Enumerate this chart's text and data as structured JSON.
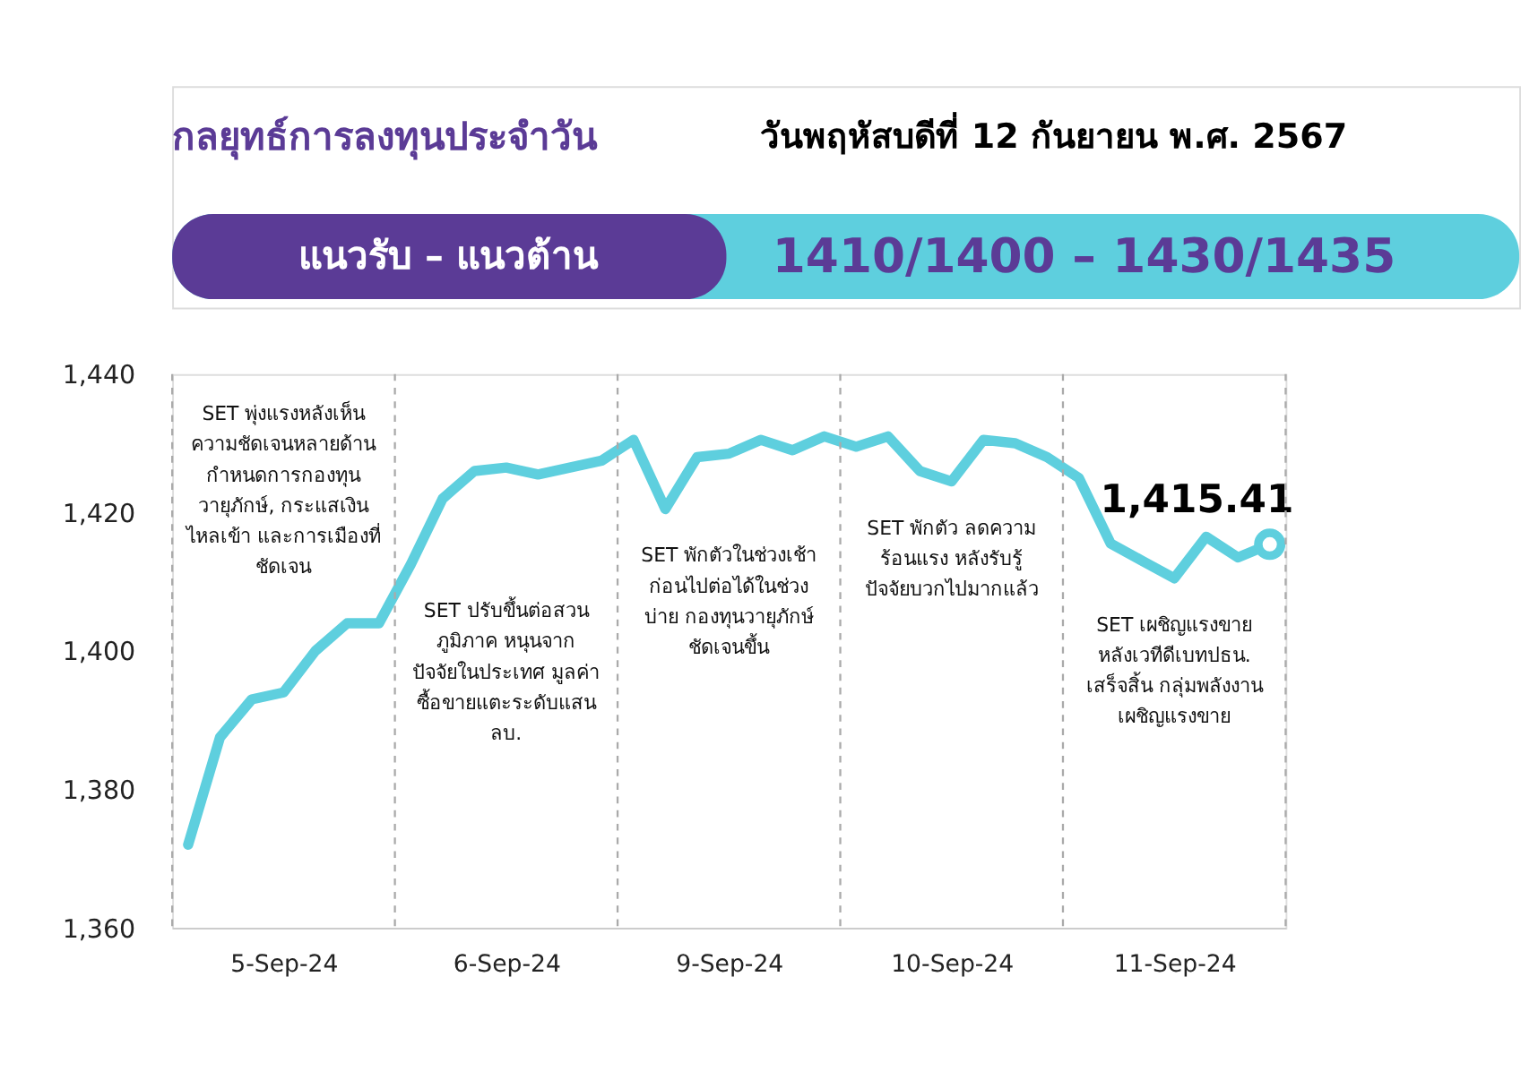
{
  "chart_data": {
    "type": "line",
    "title": "กลยุทธ์การลงทุนประจำวัน",
    "subtitle": "วันพฤหัสบดีที่ 12 กันยายน พ.ศ. 2567",
    "annotations": [
      "แนวรับ – แนวต้าน",
      "1410/1400  –  1430/1435",
      "SET พุ่งแรงหลังเห็น\nความชัดเจนหลายด้าน\nกำหนดการกองทุน\nวายุภักษ์, กระแสเงิน\nไหลเข้า และการเมืองที่\nชัดเจน",
      "SET ปรับขึ้นต่อสวน\nภูมิภาค หนุนจาก\nปัจจัยในประเทศ มูลค่า\nซื้อขายแตะระดับแสน\nลบ.",
      "SET พักตัวในช่วงเช้า\nก่อนไปต่อได้ในช่วง\nบ่าย กองทุนวายุภักษ์\nชัดเจนขึ้น",
      "SET พักตัว ลดความ\nร้อนแรง หลังรับรู้\nปัจจัยบวกไปมากแล้ว",
      "SET เผชิญแรงขาย\nหลังเวทีดีเบทปธน.\nเสร็จสิ้น กลุ่มพลังงาน\nเผชิญแรงขาย"
    ],
    "categories": [
      null,
      null,
      null,
      "5-Sep-24",
      null,
      null,
      null,
      null,
      null,
      null,
      "6-Sep-24",
      null,
      null,
      null,
      null,
      null,
      null,
      "9-Sep-24",
      null,
      null,
      null,
      null,
      null,
      null,
      "10-Sep-24",
      null,
      null,
      null,
      null,
      null,
      null,
      "11-Sep-24",
      null,
      null,
      null
    ],
    "ylim": [
      1360,
      1440
    ],
    "yticks": [
      {
        "value": 1360,
        "label": "1,360"
      },
      {
        "value": 1380,
        "label": "1,380"
      },
      {
        "value": 1400,
        "label": "1,400"
      },
      {
        "value": 1420,
        "label": "1,420"
      },
      {
        "value": 1440,
        "label": "1,440"
      }
    ],
    "series": [
      {
        "color": "#5ecfde",
        "values": [
          1372,
          1387.5,
          1393,
          1394,
          1400,
          1404,
          1404,
          1412.5,
          1422,
          1426,
          1426.5,
          1425.5,
          1426.5,
          1427.5,
          1430.5,
          1420.5,
          1428,
          1428.5,
          1430.5,
          1429,
          1431,
          1429.5,
          1431,
          1426,
          1424.5,
          1430.5,
          1430,
          1428,
          1425,
          1415.5,
          1413,
          1410.5,
          1416.5,
          1413.5,
          1415.41
        ]
      },
      {
        "type": "scatter",
        "color": "#5ecfde",
        "values": [
          null,
          null,
          null,
          null,
          null,
          null,
          null,
          null,
          null,
          null,
          null,
          null,
          null,
          null,
          null,
          null,
          null,
          null,
          null,
          null,
          null,
          null,
          null,
          null,
          null,
          null,
          null,
          null,
          null,
          null,
          null,
          null,
          null,
          null,
          1415.41
        ],
        "value_labels": [
          null,
          null,
          null,
          null,
          null,
          null,
          null,
          null,
          null,
          null,
          null,
          null,
          null,
          null,
          null,
          null,
          null,
          null,
          null,
          null,
          null,
          null,
          null,
          null,
          null,
          null,
          null,
          null,
          null,
          null,
          null,
          null,
          null,
          null,
          "1,415.41"
        ]
      }
    ]
  }
}
